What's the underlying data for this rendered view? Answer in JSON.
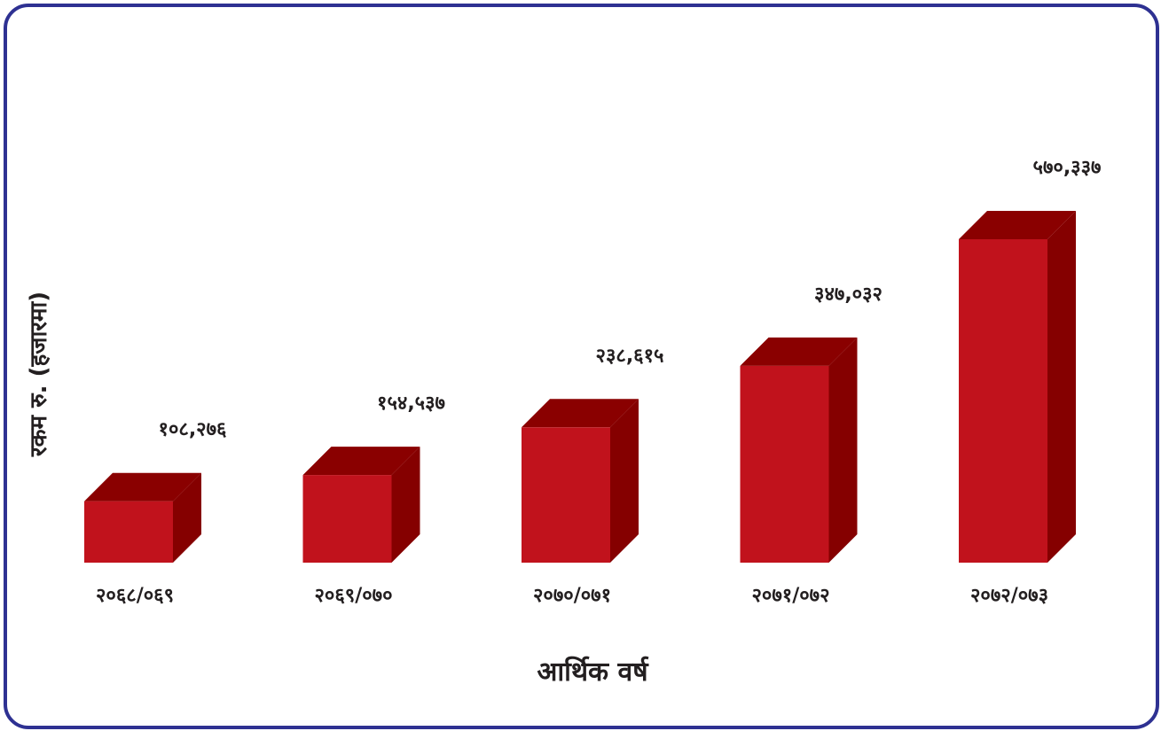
{
  "chart_data": {
    "type": "bar",
    "categories": [
      "२०६८/०६९",
      "२०६९/०७०",
      "२०७०/०७१",
      "२०७१/०७२",
      "२०७२/०७३"
    ],
    "values": [
      108276,
      154537,
      238615,
      347032,
      570337
    ],
    "value_labels": [
      "१०८,२७६",
      "१५४,५३७",
      "२३८,६१५",
      "३४७,०३२",
      "५७०,३३७"
    ],
    "xlabel": "आर्थिक वर्ष",
    "ylabel": "रकम रु. (हजारमा)",
    "ylim": [
      0,
      570337
    ],
    "grid": false,
    "style": "3d",
    "colors": {
      "front": "#c1121c",
      "top": "#8a0000",
      "side": "#850000",
      "border": "#2e3192"
    }
  }
}
